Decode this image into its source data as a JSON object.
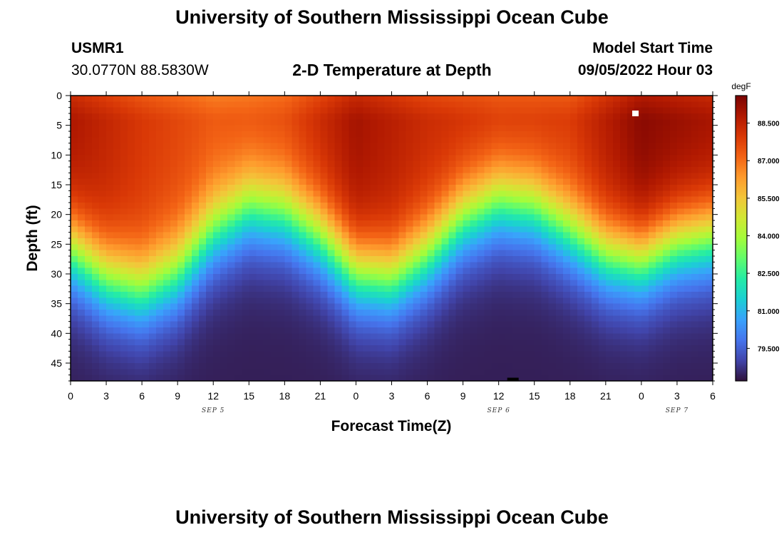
{
  "header": {
    "title": "University of Southern Mississippi Ocean Cube",
    "station": "USMR1",
    "location": "30.0770N  88.5830W",
    "subtitle": "2-D Temperature at Depth",
    "model_label": "Model Start Time",
    "model_time": "09/05/2022 Hour 03",
    "footer_title": "University of Southern Mississippi Ocean Cube"
  },
  "colors": {
    "colormap": [
      "#30123b",
      "#4145ab",
      "#4675ed",
      "#39a2fc",
      "#1bcfd4",
      "#24eca6",
      "#61fc6c",
      "#a4fc3b",
      "#d1e834",
      "#f3c63a",
      "#fe9b2d",
      "#f36315",
      "#d93806",
      "#b11901",
      "#7a0402"
    ]
  },
  "chart_data": {
    "type": "heatmap",
    "xlabel": "Forecast Time(Z)",
    "ylabel": "Depth (ft)",
    "x_range_hours": [
      0,
      54
    ],
    "ylim": [
      0,
      48
    ],
    "x_tick_labels": [
      "0",
      "3",
      "6",
      "9",
      "12",
      "15",
      "18",
      "21",
      "0",
      "3",
      "6",
      "9",
      "12",
      "15",
      "18",
      "21",
      "0",
      "3",
      "6"
    ],
    "date_labels": [
      {
        "label": "SEP 5",
        "hour": 12
      },
      {
        "label": "SEP 6",
        "hour": 36
      },
      {
        "label": "SEP 7",
        "hour": 51
      }
    ],
    "y_ticks": [
      0,
      5,
      10,
      15,
      20,
      25,
      30,
      35,
      40,
      45
    ],
    "colorbar": {
      "unit": "degF",
      "range": [
        78.2,
        89.6
      ],
      "labels": [
        "88.500",
        "87.000",
        "85.500",
        "84.000",
        "82.500",
        "81.000",
        "79.500"
      ],
      "values": [
        88.5,
        87.0,
        85.5,
        84.0,
        82.5,
        81.0,
        79.5
      ]
    },
    "thermocline_depth_ft": {
      "hours": [
        0,
        3,
        6,
        9,
        12,
        15,
        18,
        21,
        24,
        27,
        30,
        33,
        36,
        39,
        42,
        45,
        48,
        51,
        54
      ],
      "values": [
        26,
        31,
        33,
        30,
        23,
        19,
        20,
        24,
        30,
        31,
        27,
        21,
        18,
        19,
        23,
        27,
        28,
        25,
        24
      ]
    },
    "surface_temp_degF": {
      "hours": [
        0,
        6,
        12,
        18,
        24,
        30,
        36,
        42,
        48,
        54
      ],
      "values": [
        88.9,
        88.0,
        87.4,
        87.7,
        89.0,
        88.3,
        88.1,
        88.0,
        89.4,
        89.0
      ]
    },
    "bottom_temp_degF": 78.4,
    "markers": [
      {
        "hour": 47.5,
        "depth": 3,
        "color": "#ffffff"
      },
      {
        "hour": 37.2,
        "depth": 47.7,
        "color": "#000000"
      }
    ]
  }
}
